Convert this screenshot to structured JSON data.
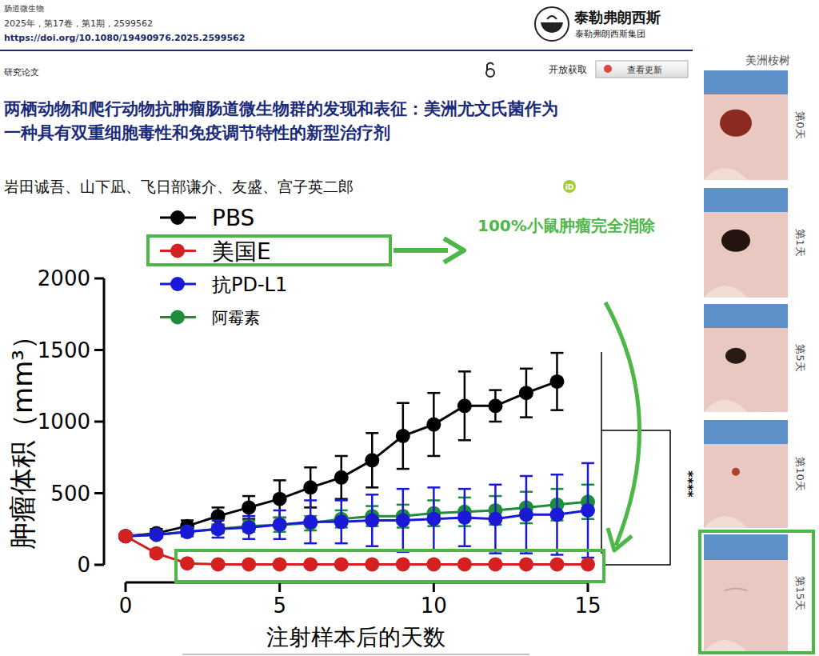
{
  "page": {
    "journal": "肠道微生物",
    "issue": "2025年，第17卷，第1期，2599562",
    "doi": "https://doi.org/10.1080/19490976.2025.2599562",
    "publisher": "泰勒弗朗西斯",
    "publisher_group": "泰勒弗朗西斯集团",
    "article_type": "研究论文",
    "open_access": "开放获取",
    "update_button": "查看更新",
    "title_lines": [
      "两栖动物和爬行动物抗肿瘤肠道微生物群的发现和表征：美洲尤文氏菌作为",
      "一种具有双重细胞毒性和免疫调节特性的新型治疗剂"
    ],
    "authors": "岩田诚吾、山下凪、飞日部谦介、友盛、宫子英二郎",
    "orcid": "iD",
    "photo_panel": {
      "title": "美洲桉树",
      "days": [
        "第0天",
        "第1天",
        "第5天",
        "第10天",
        "第15天"
      ]
    }
  },
  "chart_data": {
    "type": "line",
    "x_label": "注射样本后的天数",
    "y_label": "肿瘤体积（mm³）",
    "x": [
      0,
      1,
      2,
      3,
      4,
      5,
      6,
      7,
      8,
      9,
      10,
      11,
      12,
      13,
      14,
      15
    ],
    "xlim": [
      0,
      15
    ],
    "xticks": [
      0,
      5,
      10,
      15
    ],
    "ylim": [
      0,
      2000
    ],
    "yticks": [
      0,
      500,
      1000,
      1500,
      2000
    ],
    "grid": false,
    "legend": "top-left",
    "marker": "circle",
    "line_style": "solid",
    "annotations": [
      "100%小鼠肿瘤完全消除",
      "****"
    ],
    "series": [
      {
        "name": "PBS",
        "color": "#000000",
        "values": [
          200,
          220,
          270,
          340,
          400,
          460,
          540,
          610,
          730,
          900,
          980,
          1110,
          1110,
          1200,
          1280,
          null
        ],
        "errors": [
          20,
          30,
          40,
          60,
          80,
          130,
          140,
          150,
          190,
          230,
          220,
          240,
          110,
          170,
          200,
          null
        ]
      },
      {
        "name": "美国E",
        "color": "#d42020",
        "values": [
          200,
          80,
          10,
          3,
          3,
          3,
          3,
          3,
          3,
          3,
          3,
          3,
          3,
          3,
          3,
          3
        ],
        "errors": [
          10,
          25,
          8,
          3,
          3,
          3,
          3,
          3,
          3,
          3,
          3,
          3,
          3,
          3,
          3,
          3
        ]
      },
      {
        "name": "抗PD-L1",
        "color": "#1a1ad6",
        "values": [
          200,
          210,
          230,
          250,
          260,
          280,
          300,
          300,
          310,
          310,
          320,
          330,
          320,
          350,
          350,
          380
        ],
        "errors": [
          10,
          20,
          30,
          60,
          80,
          100,
          150,
          150,
          180,
          220,
          220,
          200,
          240,
          270,
          280,
          330
        ]
      },
      {
        "name": "阿霉素",
        "color": "#1e8c3a",
        "values": [
          200,
          210,
          230,
          250,
          270,
          280,
          290,
          320,
          340,
          340,
          360,
          370,
          380,
          400,
          420,
          440
        ],
        "errors": [
          20,
          20,
          30,
          30,
          40,
          50,
          50,
          60,
          70,
          80,
          90,
          100,
          100,
          110,
          110,
          120
        ]
      }
    ]
  }
}
